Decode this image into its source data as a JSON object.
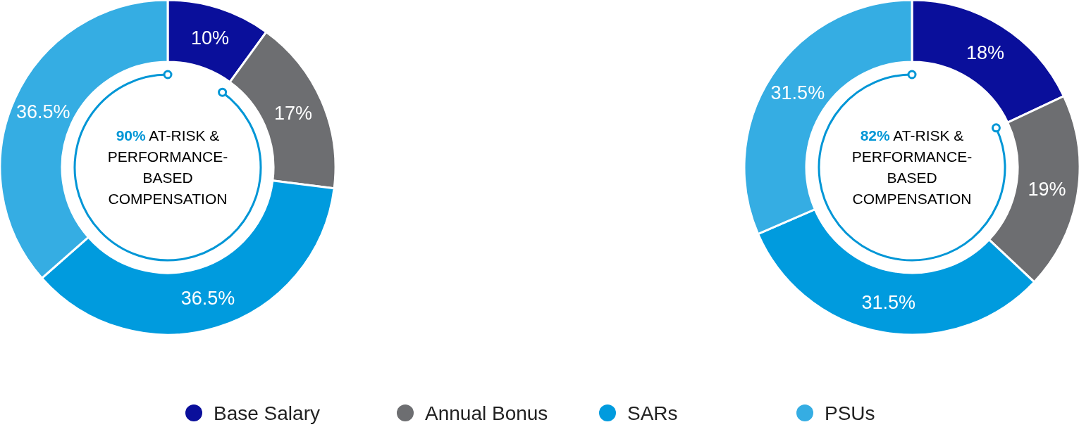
{
  "chart_data": [
    {
      "type": "donut",
      "categories": [
        "Base Salary",
        "Annual Bonus",
        "SARs",
        "PSUs"
      ],
      "values": [
        10,
        17,
        36.5,
        36.5
      ],
      "value_labels": [
        "10%",
        "17%",
        "36.5%",
        "36.5%"
      ],
      "colors": [
        "#0a0f9b",
        "#6d6e71",
        "#009bde",
        "#35ade3"
      ],
      "legend": "bottom",
      "annotations": [
        "90% AT-RISK & PERFORMANCE-BASED COMPENSATION"
      ]
    },
    {
      "type": "donut",
      "categories": [
        null,
        null,
        null,
        null
      ],
      "values": [
        18,
        19,
        31.5,
        31.5
      ],
      "value_labels": [
        "18%",
        "19%",
        "31.5%",
        "31.5%"
      ],
      "colors": [
        "#0a0f9b",
        "#6d6e71",
        "#009bde",
        "#35ade3"
      ],
      "annotations": [
        "82% AT-RISK & PERFORMANCE-BASED COMPENSATION"
      ]
    }
  ]
}
